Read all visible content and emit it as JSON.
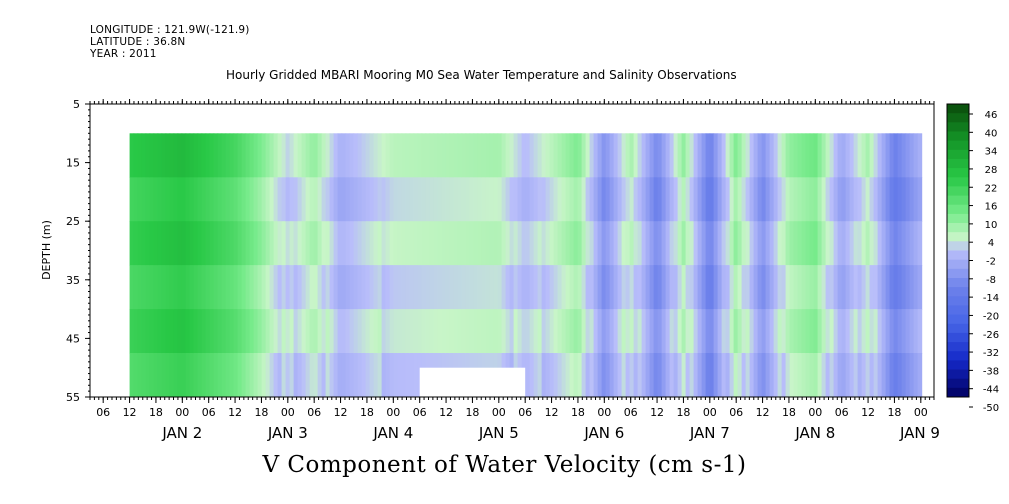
{
  "header": {
    "longitude": "LONGITUDE : 121.9W(-121.9)",
    "latitude": "LATITUDE : 36.8N",
    "year": "YEAR : 2011",
    "title": "Hourly Gridded MBARI Mooring M0 Sea Water Temperature and Salinity Observations"
  },
  "footer": {
    "variable": "V Component of Water Velocity (cm s-1)"
  },
  "colors": {
    "positive_max": "#0a4a0a",
    "zero": "#c8f5c8",
    "negative_max": "#000060"
  },
  "chart_data": {
    "type": "heatmap",
    "title": "Hourly Gridded MBARI Mooring M0 Sea Water Temperature and Salinity Observations",
    "ylabel": "DEPTH (m)",
    "xlabel": "",
    "ylim": [
      55,
      5
    ],
    "xlim": [
      "2011-01-01T03:00",
      "2011-01-09T03:00"
    ],
    "y_ticks": [
      "5",
      "15",
      "25",
      "35",
      "45",
      "55"
    ],
    "x_hour_ticks": [
      "06",
      "12",
      "18",
      "00",
      "06",
      "12",
      "18",
      "00",
      "06",
      "12",
      "18",
      "00",
      "06",
      "12",
      "18",
      "00",
      "06",
      "12",
      "18",
      "00",
      "06",
      "12",
      "18",
      "00",
      "06",
      "12",
      "18",
      "00",
      "06",
      "12",
      "18",
      "00"
    ],
    "x_day_labels": [
      "JAN  2",
      "JAN  3",
      "JAN  4",
      "JAN  5",
      "JAN  6",
      "JAN  7",
      "JAN  8",
      "JAN  9"
    ],
    "colorbar_labels": [
      "46",
      "40",
      "34",
      "28",
      "22",
      "16",
      "10",
      "4",
      "-2",
      "-8",
      "-14",
      "-20",
      "-26",
      "-32",
      "-38",
      "-44",
      "-50"
    ],
    "colorbar_range": [
      -50,
      46
    ],
    "data_time_range": [
      "2011-01-01T12:00",
      "2011-01-09T00:00"
    ],
    "data_depth_range": [
      10,
      55
    ],
    "missing_region": {
      "time": [
        "2011-01-04T06:00",
        "2011-01-05T06:00"
      ],
      "depth": [
        50,
        55
      ]
    },
    "pattern": [
      {
        "time": "2011-01-01T12:00",
        "v": 20
      },
      {
        "time": "2011-01-02T00:00",
        "v": 24
      },
      {
        "time": "2011-01-02T12:00",
        "v": 16
      },
      {
        "time": "2011-01-02T18:00",
        "v": 8
      },
      {
        "time": "2011-01-03T00:00",
        "v": -2
      },
      {
        "time": "2011-01-03T06:00",
        "v": 6
      },
      {
        "time": "2011-01-03T12:00",
        "v": -6
      },
      {
        "time": "2011-01-04T00:00",
        "v": 2
      },
      {
        "time": "2011-01-04T12:00",
        "v": 3
      },
      {
        "time": "2011-01-05T00:00",
        "v": 4
      },
      {
        "time": "2011-01-05T06:00",
        "v": -4
      },
      {
        "time": "2011-01-05T12:00",
        "v": 2
      },
      {
        "time": "2011-01-05T18:00",
        "v": 8
      },
      {
        "time": "2011-01-06T00:00",
        "v": -12
      },
      {
        "time": "2011-01-06T06:00",
        "v": 4
      },
      {
        "time": "2011-01-06T12:00",
        "v": -14
      },
      {
        "time": "2011-01-06T18:00",
        "v": 6
      },
      {
        "time": "2011-01-07T00:00",
        "v": -16
      },
      {
        "time": "2011-01-07T06:00",
        "v": 8
      },
      {
        "time": "2011-01-07T12:00",
        "v": -12
      },
      {
        "time": "2011-01-07T18:00",
        "v": 6
      },
      {
        "time": "2011-01-08T00:00",
        "v": 10
      },
      {
        "time": "2011-01-08T06:00",
        "v": -8
      },
      {
        "time": "2011-01-08T12:00",
        "v": 4
      },
      {
        "time": "2011-01-08T18:00",
        "v": -16
      },
      {
        "time": "2011-01-09T00:00",
        "v": -6
      }
    ]
  }
}
